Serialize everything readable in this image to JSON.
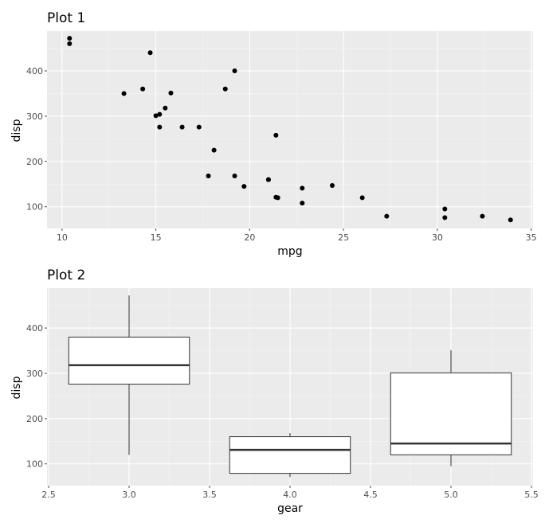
{
  "colors": {
    "panel_bg": "#ebebeb",
    "grid_major": "#ffffff",
    "grid_minor": "#f5f5f5",
    "point": "#000000",
    "box_fill": "#ffffff",
    "box_line": "#333333",
    "tick": "#4d4d4d"
  },
  "chart_data": [
    {
      "type": "scatter",
      "title": "Plot 1",
      "xlabel": "mpg",
      "ylabel": "disp",
      "xlim": [
        9.2,
        35.1
      ],
      "ylim": [
        52,
        488
      ],
      "xticks": [
        10,
        15,
        20,
        25,
        30,
        35
      ],
      "xtick_labels": [
        "10",
        "15",
        "20",
        "25",
        "30",
        "35"
      ],
      "yticks": [
        100,
        200,
        300,
        400
      ],
      "ytick_labels": [
        "100",
        "200",
        "300",
        "400"
      ],
      "grid": true,
      "points": [
        {
          "x": 10.4,
          "y": 472
        },
        {
          "x": 10.4,
          "y": 460
        },
        {
          "x": 14.7,
          "y": 440
        },
        {
          "x": 19.2,
          "y": 400
        },
        {
          "x": 14.3,
          "y": 360
        },
        {
          "x": 18.7,
          "y": 360
        },
        {
          "x": 15.8,
          "y": 351
        },
        {
          "x": 13.3,
          "y": 350
        },
        {
          "x": 15.5,
          "y": 318
        },
        {
          "x": 15.2,
          "y": 304
        },
        {
          "x": 15.0,
          "y": 301
        },
        {
          "x": 15.2,
          "y": 276
        },
        {
          "x": 16.4,
          "y": 276
        },
        {
          "x": 17.3,
          "y": 276
        },
        {
          "x": 21.4,
          "y": 258
        },
        {
          "x": 18.1,
          "y": 225
        },
        {
          "x": 17.8,
          "y": 168
        },
        {
          "x": 19.2,
          "y": 168
        },
        {
          "x": 21.0,
          "y": 160
        },
        {
          "x": 21.0,
          "y": 160
        },
        {
          "x": 24.4,
          "y": 147
        },
        {
          "x": 19.7,
          "y": 145
        },
        {
          "x": 22.8,
          "y": 141
        },
        {
          "x": 21.4,
          "y": 121
        },
        {
          "x": 26.0,
          "y": 120
        },
        {
          "x": 21.5,
          "y": 120
        },
        {
          "x": 22.8,
          "y": 108
        },
        {
          "x": 30.4,
          "y": 95
        },
        {
          "x": 27.3,
          "y": 79
        },
        {
          "x": 32.4,
          "y": 79
        },
        {
          "x": 30.4,
          "y": 76
        },
        {
          "x": 33.9,
          "y": 71
        }
      ]
    },
    {
      "type": "box",
      "title": "Plot 2",
      "xlabel": "gear",
      "ylabel": "disp",
      "xlim": [
        2.49,
        5.51
      ],
      "ylim": [
        52,
        488
      ],
      "xticks": [
        2.5,
        3.0,
        3.5,
        4.0,
        4.5,
        5.0,
        5.5
      ],
      "xtick_labels": [
        "2.5",
        "3.0",
        "3.5",
        "4.0",
        "4.5",
        "5.0",
        "5.5"
      ],
      "yticks": [
        100,
        200,
        300,
        400
      ],
      "ytick_labels": [
        "100",
        "200",
        "300",
        "400"
      ],
      "grid": true,
      "box_width": 0.75,
      "boxes": [
        {
          "x": 3.0,
          "min": 120,
          "q1": 276,
          "median": 318,
          "q3": 380,
          "max": 472
        },
        {
          "x": 4.0,
          "min": 71,
          "q1": 79,
          "median": 131,
          "q3": 160,
          "max": 168
        },
        {
          "x": 5.0,
          "min": 95,
          "q1": 120,
          "median": 145,
          "q3": 301,
          "max": 351
        }
      ]
    }
  ]
}
